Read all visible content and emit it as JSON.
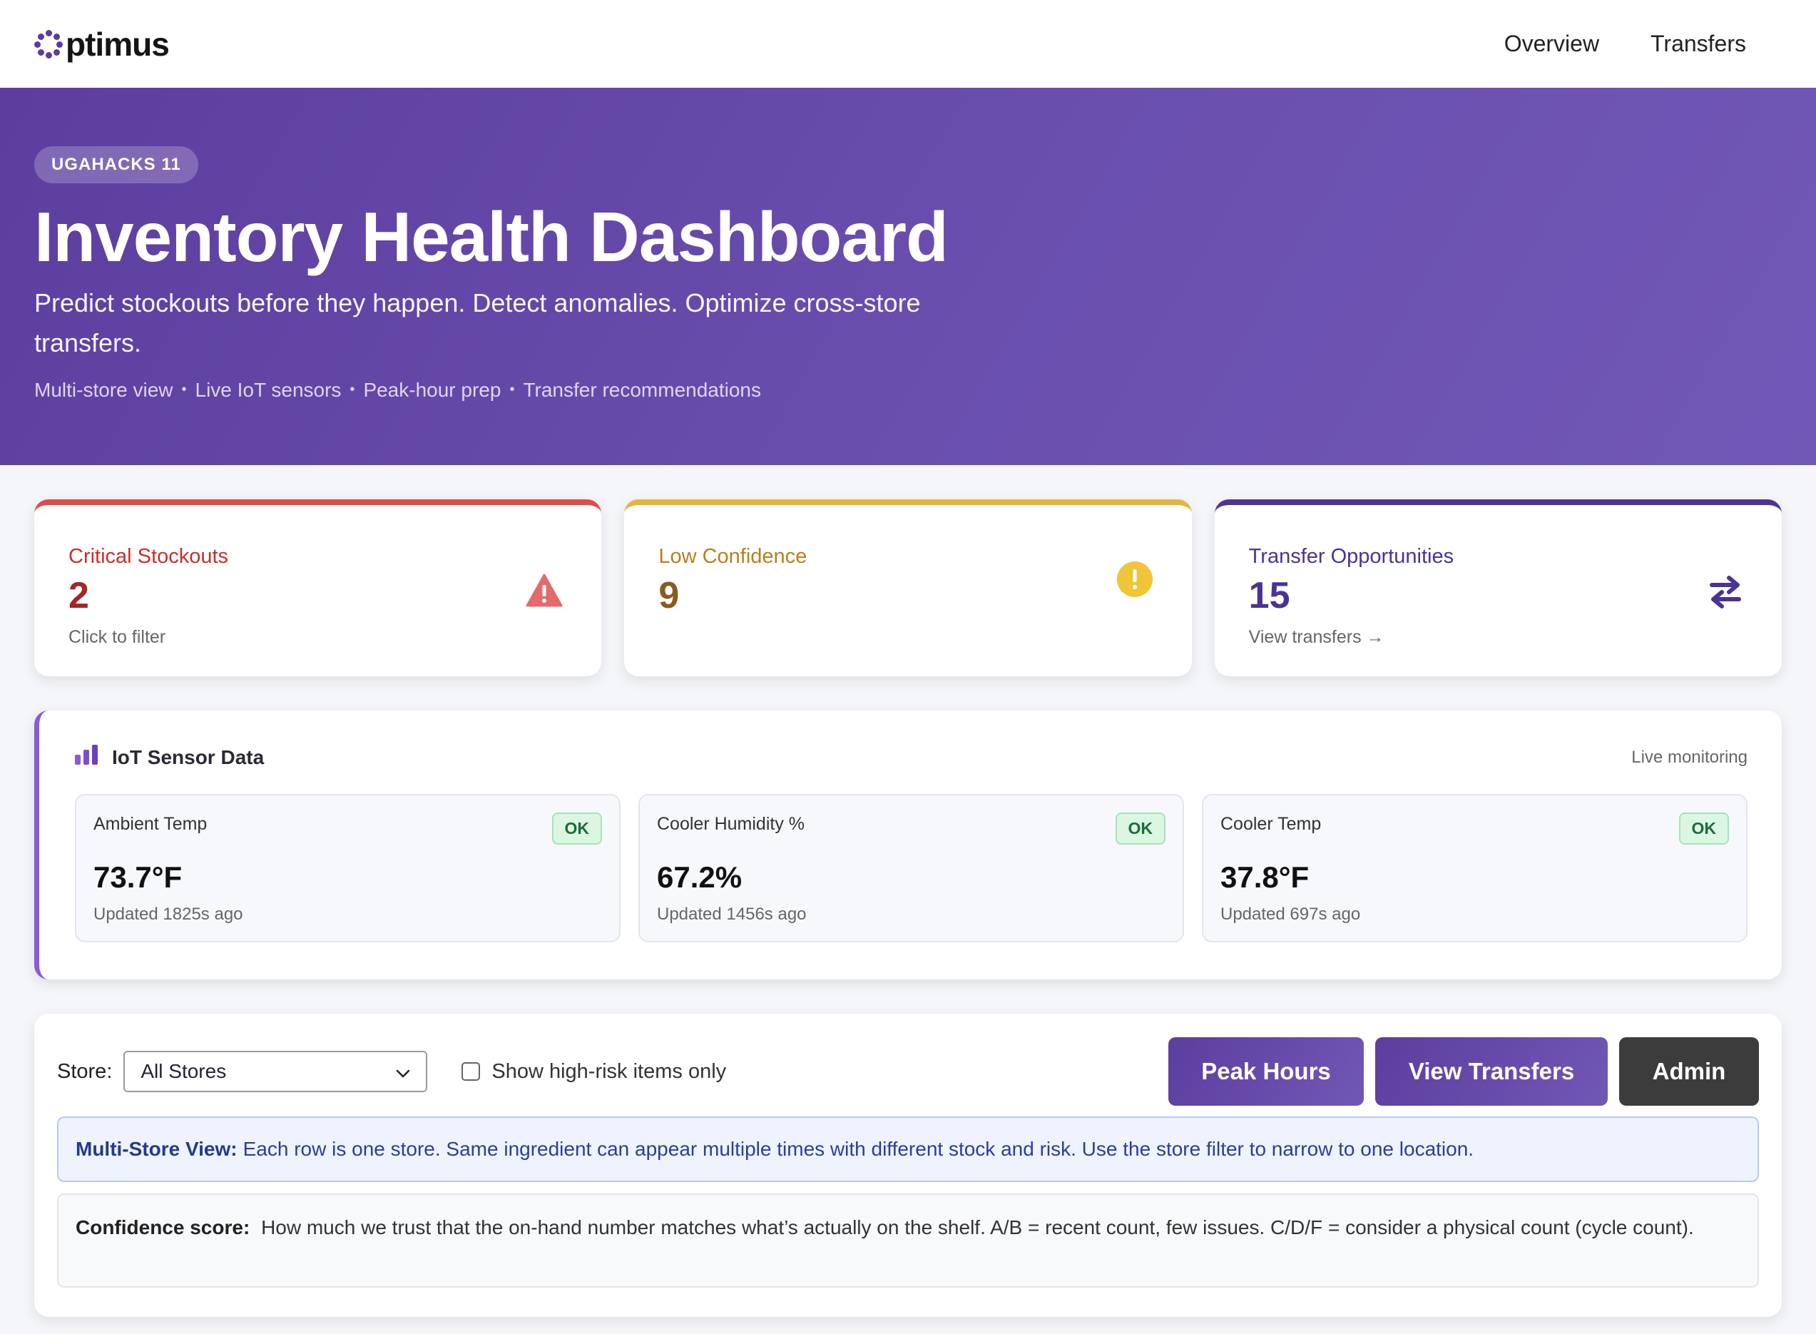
{
  "brand": {
    "name": "ptimus",
    "accent": "#5b3b9e"
  },
  "nav": {
    "items": [
      {
        "label": "Overview"
      },
      {
        "label": "Transfers"
      }
    ]
  },
  "hero": {
    "badge": "UGAHACKS 11",
    "title": "Inventory Health Dashboard",
    "subtitle": "Predict stockouts before they happen. Detect anomalies. Optimize cross-store transfers.",
    "tags": [
      "Multi-store view",
      "Live IoT sensors",
      "Peak-hour prep",
      "Transfer recommendations"
    ],
    "tag_separator": "•"
  },
  "stats": [
    {
      "label": "Critical Stockouts",
      "value": "2",
      "hint": "Click to filter",
      "icon": "warning-triangle-icon",
      "color": "#e04b4b"
    },
    {
      "label": "Low Confidence",
      "value": "9",
      "hint": "",
      "icon": "exclamation-circle-icon",
      "color": "#e3b53c"
    },
    {
      "label": "Transfer Opportunities",
      "value": "15",
      "hint": "View transfers →",
      "icon": "transfer-arrows-icon",
      "color": "#4d3496"
    }
  ],
  "iot": {
    "title": "IoT Sensor Data",
    "status": "Live monitoring",
    "sensors": [
      {
        "name": "Ambient Temp",
        "value": "73.7°F",
        "updated": "Updated 1825s ago",
        "status": "OK"
      },
      {
        "name": "Cooler Humidity %",
        "value": "67.2%",
        "updated": "Updated 1456s ago",
        "status": "OK"
      },
      {
        "name": "Cooler Temp",
        "value": "37.8°F",
        "updated": "Updated 697s ago",
        "status": "OK"
      }
    ]
  },
  "controls": {
    "store_label": "Store:",
    "store_value": "All Stores",
    "checkbox_label": "Show high-risk items only",
    "checkbox_checked": false,
    "buttons": {
      "peak": "Peak Hours",
      "transfers": "View Transfers",
      "admin": "Admin"
    }
  },
  "info": {
    "multistore_title": "Multi-Store View:",
    "multistore_text": "Each row is one store. Same ingredient can appear multiple times with different stock and risk. Use the store filter to narrow to one location.",
    "confidence_title": "Confidence score:",
    "confidence_text": "How much we trust that the on-hand number matches what’s actually on the shelf. A/B = recent count, few issues. C/D/F = consider a physical count (cycle count)."
  }
}
